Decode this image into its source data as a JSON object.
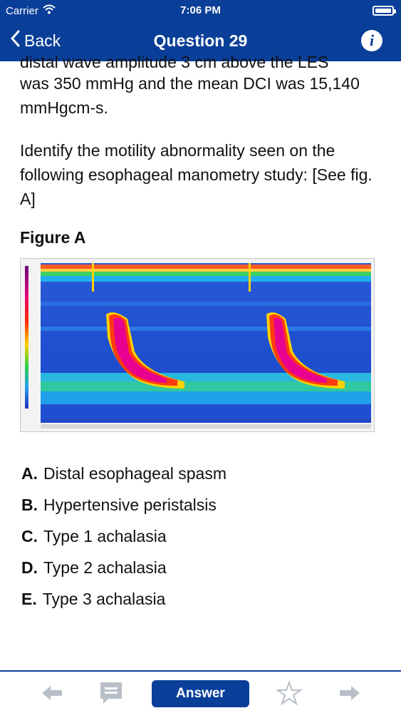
{
  "status_bar": {
    "carrier": "Carrier",
    "time": "7:06 PM"
  },
  "nav": {
    "back_label": "Back",
    "title": "Question 29"
  },
  "question": {
    "partial_top_line": "distal wave amplitude 3 cm above the LES",
    "paragraph_1": "was 350 mmHg and the mean DCI was 15,140 mmHgcm-s.",
    "paragraph_2": "Identify the motility abnormality seen on the following esophageal manometry study: [See fig. A]"
  },
  "figure": {
    "title": "Figure A"
  },
  "options": [
    {
      "letter": "A.",
      "text": "Distal esophageal spasm"
    },
    {
      "letter": "B.",
      "text": "Hypertensive peristalsis"
    },
    {
      "letter": "C.",
      "text": "Type 1 achalasia"
    },
    {
      "letter": "D.",
      "text": "Type 2 achalasia"
    },
    {
      "letter": "E.",
      "text": "Type 3 achalasia"
    }
  ],
  "toolbar": {
    "answer_label": "Answer"
  },
  "colors": {
    "brand_blue": "#0a3f99",
    "toolbar_gray": "#b9bfc8"
  },
  "icons": [
    "wifi-icon",
    "battery-icon",
    "chevron-left-icon",
    "info-icon",
    "arrow-left-icon",
    "note-icon",
    "star-icon",
    "arrow-right-icon"
  ]
}
